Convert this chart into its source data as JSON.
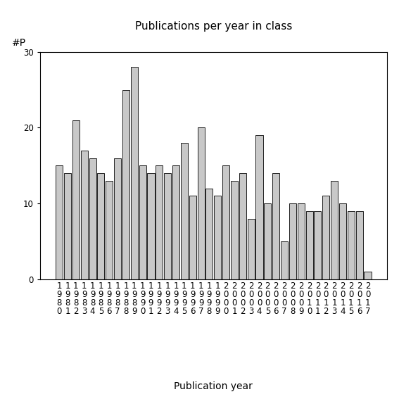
{
  "title": "Publications per year in class",
  "xlabel": "Publication year",
  "ylabel": "#P",
  "years": [
    "1980",
    "1981",
    "1982",
    "1983",
    "1984",
    "1985",
    "1986",
    "1987",
    "1988",
    "1989",
    "1990",
    "1991",
    "1992",
    "1993",
    "1994",
    "1995",
    "1996",
    "1997",
    "1998",
    "1999",
    "2000",
    "2001",
    "2002",
    "2003",
    "2004",
    "2005",
    "2006",
    "2007",
    "2008",
    "2009",
    "2010",
    "2011",
    "2012",
    "2013",
    "2014",
    "2015",
    "2016",
    "2017"
  ],
  "values": [
    15,
    14,
    21,
    17,
    16,
    14,
    13,
    16,
    25,
    28,
    15,
    14,
    15,
    14,
    15,
    18,
    11,
    20,
    12,
    11,
    15,
    13,
    14,
    8,
    19,
    10,
    14,
    5,
    10,
    10,
    9,
    9,
    11,
    13,
    10,
    9,
    9,
    1
  ],
  "bar_color": "#c8c8c8",
  "bar_edge_color": "#000000",
  "ylim": [
    0,
    30
  ],
  "yticks": [
    0,
    10,
    20,
    30
  ],
  "background_color": "#ffffff",
  "title_fontsize": 11,
  "label_fontsize": 10,
  "tick_fontsize": 8.5
}
